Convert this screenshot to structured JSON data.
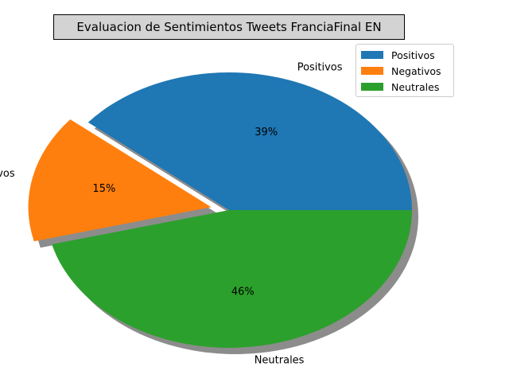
{
  "chart_data": {
    "type": "pie",
    "title": "Evaluacion de Sentimientos Tweets FranciaFinal EN",
    "categories": [
      "Positivos",
      "Negativos",
      "Neutrales"
    ],
    "values": [
      39,
      15,
      46
    ],
    "pct_labels": [
      "39%",
      "15%",
      "46%"
    ],
    "colors": [
      "#1f77b4",
      "#ff7f0e",
      "#2ca02c"
    ],
    "explode": [
      0,
      0.1,
      0
    ],
    "shadow": true,
    "legend_position": "top-right",
    "wedge_labels": [
      "Positivos",
      "vos",
      "Neutrales"
    ]
  }
}
